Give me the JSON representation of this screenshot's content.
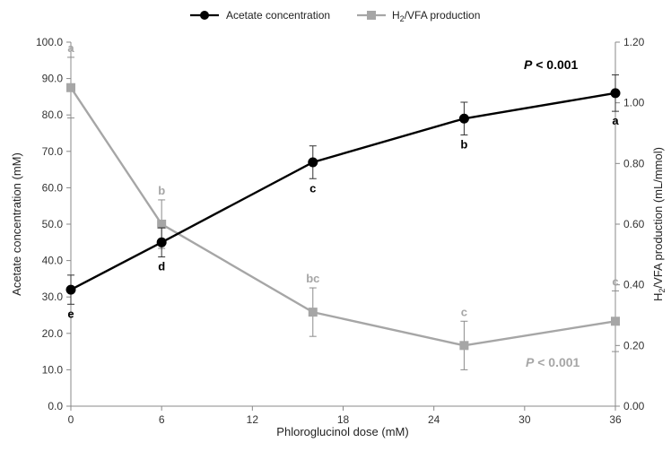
{
  "chart_data": {
    "type": "line",
    "x": [
      0,
      6,
      16,
      26,
      36
    ],
    "xlabel": "Phloroglucinol dose (mM)",
    "xlim": [
      0,
      36
    ],
    "x_ticks": [
      "0",
      "6",
      "12",
      "18",
      "24",
      "30",
      "36"
    ],
    "ylabel_left": "Acetate concentration (mM)",
    "ylim_left": [
      0,
      100
    ],
    "y_ticks_left": [
      "0.0",
      "10.0",
      "20.0",
      "30.0",
      "40.0",
      "50.0",
      "60.0",
      "70.0",
      "80.0",
      "90.0",
      "100.0"
    ],
    "ylabel_right_prefix": "H",
    "ylabel_right_sub": "2",
    "ylabel_right_suffix": "/VFA production (mL/mmol)",
    "ylim_right": [
      0,
      1.2
    ],
    "y_ticks_right": [
      "0.00",
      "0.20",
      "0.40",
      "0.60",
      "0.80",
      "1.00",
      "1.20"
    ],
    "grid": false,
    "legend_position": "top-center",
    "series": [
      {
        "name": "Acetate concentration",
        "axis": "left",
        "color": "#000000",
        "marker": "circle",
        "values": [
          32.0,
          45.0,
          67.0,
          79.0,
          86.0
        ],
        "errors": [
          4.0,
          4.0,
          4.5,
          4.5,
          5.0
        ],
        "labels": [
          "e",
          "d",
          "c",
          "b",
          "a"
        ],
        "p_value_bold": "P",
        "p_value_rest": " < 0.001"
      },
      {
        "name_prefix": "H",
        "name_sub": "2",
        "name_suffix": "/VFA production",
        "axis": "right",
        "color": "#a6a6a6",
        "marker": "square",
        "values": [
          1.05,
          0.6,
          0.31,
          0.2,
          0.28
        ],
        "errors": [
          0.1,
          0.08,
          0.08,
          0.08,
          0.1
        ],
        "labels": [
          "a",
          "b",
          "bc",
          "c",
          "c"
        ],
        "p_value_bold": "P",
        "p_value_rest": " < 0.001"
      }
    ]
  }
}
